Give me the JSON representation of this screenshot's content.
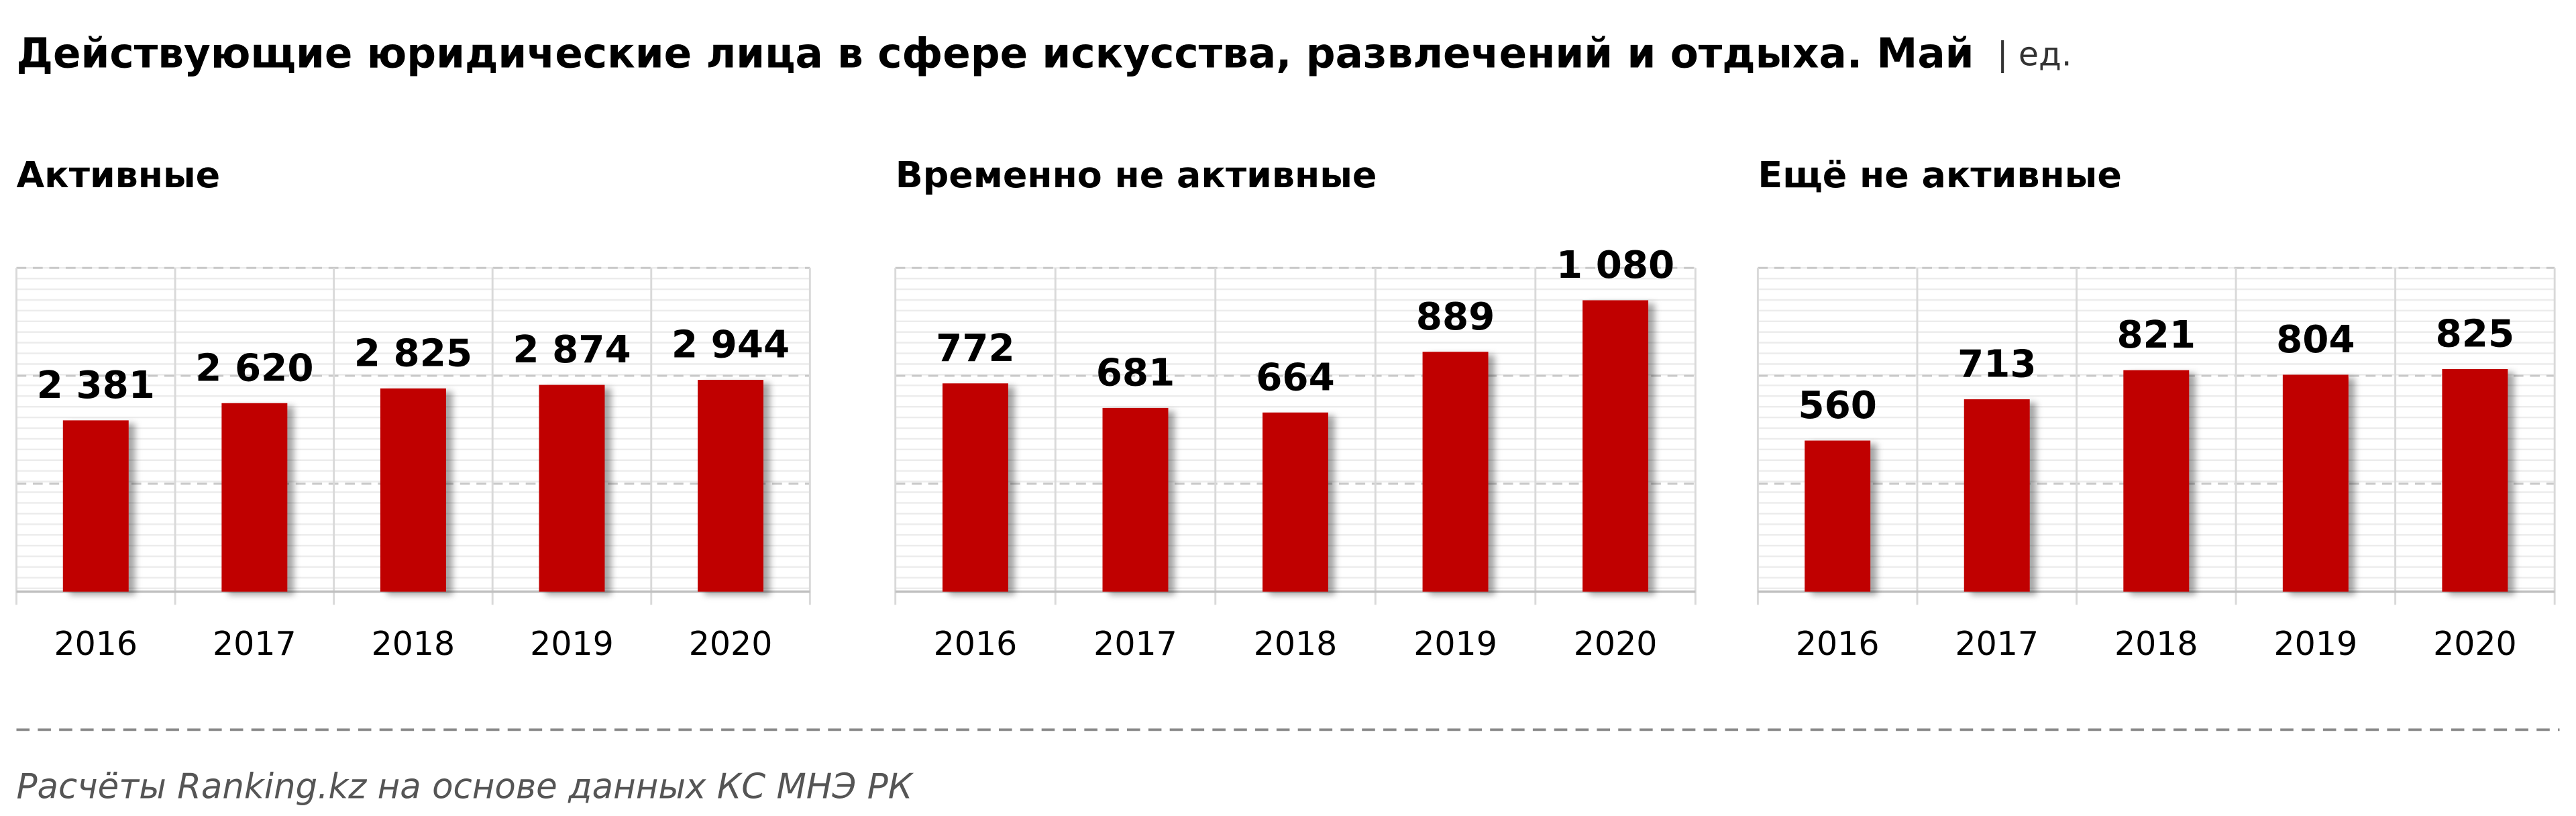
{
  "title": "Действующие юридические лица в сфере искусства, развлечений и отдыха. Май",
  "unit": "| ед.",
  "source": "Расчёты Ranking.kz на основе данных КС МНЭ РК",
  "chart_data": [
    {
      "type": "bar",
      "title": "Активные",
      "categories": [
        "2016",
        "2017",
        "2018",
        "2019",
        "2020"
      ],
      "values": [
        2381,
        2620,
        2825,
        2874,
        2944
      ],
      "value_labels": [
        "2 381",
        "2 620",
        "2 825",
        "2 874",
        "2 944"
      ],
      "color": "#c00000",
      "ylim": [
        0,
        4500
      ],
      "yticks": [
        0,
        1500,
        3000,
        4500
      ],
      "grid": true
    },
    {
      "type": "bar",
      "title": "Временно не активные",
      "categories": [
        "2016",
        "2017",
        "2018",
        "2019",
        "2020"
      ],
      "values": [
        772,
        681,
        664,
        889,
        1080
      ],
      "value_labels": [
        "772",
        "681",
        "664",
        "889",
        "1 080"
      ],
      "color": "#c00000",
      "ylim": [
        0,
        1200
      ],
      "yticks": [
        0,
        400,
        800,
        1200
      ],
      "grid": true
    },
    {
      "type": "bar",
      "title": "Ещё не активные",
      "categories": [
        "2016",
        "2017",
        "2018",
        "2019",
        "2020"
      ],
      "values": [
        560,
        713,
        821,
        804,
        825
      ],
      "color": "#c00000",
      "ylim": [
        0,
        1200
      ],
      "yticks": [
        0,
        400,
        800,
        1200
      ],
      "grid": true
    }
  ]
}
